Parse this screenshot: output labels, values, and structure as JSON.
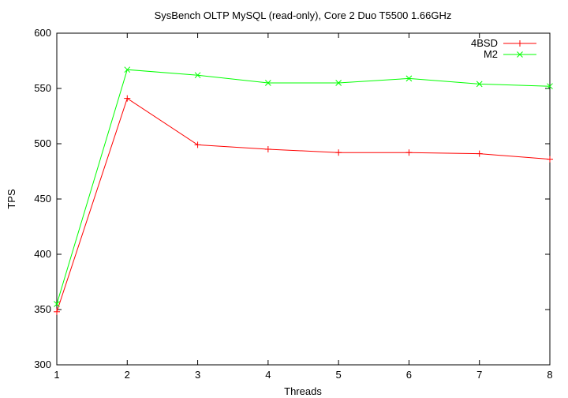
{
  "chart_data": {
    "type": "line",
    "title": "SysBench OLTP MySQL (read-only), Core 2 Duo T5500 1.66GHz",
    "xlabel": "Threads",
    "ylabel": "TPS",
    "x": [
      1,
      2,
      3,
      4,
      5,
      6,
      7,
      8
    ],
    "xlim": [
      1,
      8
    ],
    "ylim": [
      300,
      600
    ],
    "xticks": [
      "1",
      "2",
      "3",
      "4",
      "5",
      "6",
      "7",
      "8"
    ],
    "yticks": [
      "300",
      "350",
      "400",
      "450",
      "500",
      "550",
      "600"
    ],
    "grid": false,
    "legend_position": "top-right",
    "series": [
      {
        "name": "4BSD",
        "color": "#ff0000",
        "marker": "plus",
        "values": [
          348,
          541,
          499,
          495,
          492,
          492,
          491,
          486
        ]
      },
      {
        "name": "M2",
        "color": "#00ff00",
        "marker": "cross",
        "values": [
          355,
          567,
          562,
          555,
          555,
          559,
          554,
          552
        ]
      }
    ]
  }
}
